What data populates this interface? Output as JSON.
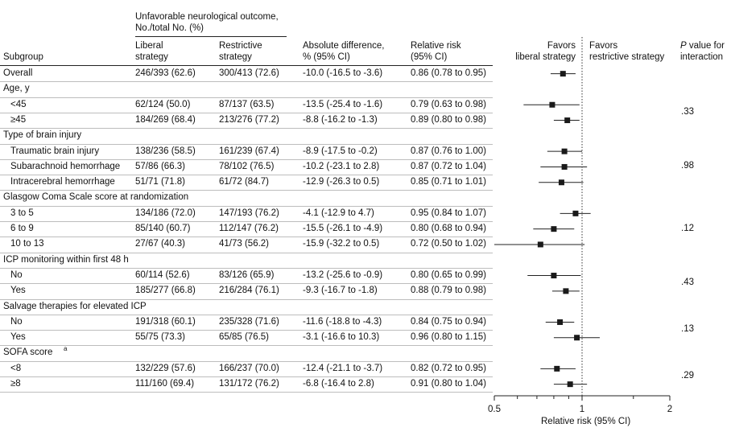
{
  "headers": {
    "outcome_line1": "Unfavorable neurological outcome,",
    "outcome_line2": "No./total No. (%)",
    "subgroup": "Subgroup",
    "liberal_1": "Liberal",
    "liberal_2": "strategy",
    "restrictive_1": "Restrictive",
    "restrictive_2": "strategy",
    "absdiff_1": "Absolute difference,",
    "absdiff_2": "% (95% CI)",
    "rr_1": "Relative risk",
    "rr_2": "(95% CI)",
    "favors_liberal_1": "Favors",
    "favors_liberal_2": "liberal strategy",
    "favors_restrictive_1": "Favors",
    "favors_restrictive_2": "restrictive strategy",
    "pval_1": "P",
    "pval_1b": " value for",
    "pval_2": "interaction"
  },
  "chart_data": {
    "type": "forest",
    "xlabel": "Relative risk (95% CI)",
    "xscale": "log",
    "xlim": [
      0.5,
      2
    ],
    "xticks": [
      "0.5",
      "1",
      "2"
    ],
    "reference_line": 1,
    "rows": [
      {
        "kind": "row",
        "label": "Overall",
        "liberal": "246/393 (62.6)",
        "restrictive": "300/413 (72.6)",
        "absdiff": "-10.0 (-16.5 to -3.6)",
        "rr_text": "0.86 (0.78 to 0.95)",
        "rr": 0.86,
        "lo": 0.78,
        "hi": 0.95
      },
      {
        "kind": "group",
        "label": "Age, y"
      },
      {
        "kind": "row",
        "label": "<45",
        "liberal": "62/124 (50.0)",
        "restrictive": "87/137 (63.5)",
        "absdiff": "-13.5 (-25.4 to -1.6)",
        "rr_text": "0.79 (0.63 to 0.98)",
        "rr": 0.79,
        "lo": 0.63,
        "hi": 0.98
      },
      {
        "kind": "row",
        "label": "≥45",
        "liberal": "184/269 (68.4)",
        "restrictive": "213/276 (77.2)",
        "absdiff": "-8.8 (-16.2 to -1.3)",
        "rr_text": "0.89 (0.80 to 0.98)",
        "rr": 0.89,
        "lo": 0.8,
        "hi": 0.98
      },
      {
        "kind": "group",
        "label": "Type of brain injury"
      },
      {
        "kind": "row",
        "label": "Traumatic brain injury",
        "liberal": "138/236 (58.5)",
        "restrictive": "161/239 (67.4)",
        "absdiff": "-8.9 (-17.5 to -0.2)",
        "rr_text": "0.87 (0.76 to 1.00)",
        "rr": 0.87,
        "lo": 0.76,
        "hi": 1.0
      },
      {
        "kind": "row",
        "label": "Subarachnoid hemorrhage",
        "liberal": "57/86 (66.3)",
        "restrictive": "78/102 (76.5)",
        "absdiff": "-10.2 (-23.1 to 2.8)",
        "rr_text": "0.87 (0.72 to 1.04)",
        "rr": 0.87,
        "lo": 0.72,
        "hi": 1.04
      },
      {
        "kind": "row",
        "label": "Intracerebral hemorrhage",
        "liberal": "51/71 (71.8)",
        "restrictive": "61/72 (84.7)",
        "absdiff": "-12.9 (-26.3 to 0.5)",
        "rr_text": "0.85 (0.71 to 1.01)",
        "rr": 0.85,
        "lo": 0.71,
        "hi": 1.01
      },
      {
        "kind": "group",
        "label": "Glasgow Coma Scale score at randomization"
      },
      {
        "kind": "row",
        "label": "3 to 5",
        "liberal": "134/186 (72.0)",
        "restrictive": "147/193 (76.2)",
        "absdiff": "-4.1 (-12.9 to 4.7)",
        "rr_text": "0.95 (0.84 to 1.07)",
        "rr": 0.95,
        "lo": 0.84,
        "hi": 1.07
      },
      {
        "kind": "row",
        "label": "6 to 9",
        "liberal": "85/140 (60.7)",
        "restrictive": "112/147 (76.2)",
        "absdiff": "-15.5 (-26.1 to -4.9)",
        "rr_text": "0.80 (0.68 to 0.94)",
        "rr": 0.8,
        "lo": 0.68,
        "hi": 0.94
      },
      {
        "kind": "row",
        "label": "10 to 13",
        "liberal": "27/67 (40.3)",
        "restrictive": "41/73 (56.2)",
        "absdiff": "-15.9 (-32.2 to 0.5)",
        "rr_text": "0.72 (0.50 to 1.02)",
        "rr": 0.72,
        "lo": 0.5,
        "hi": 1.02
      },
      {
        "kind": "group",
        "label": "ICP monitoring within first 48 h"
      },
      {
        "kind": "row",
        "label": "No",
        "liberal": "60/114 (52.6)",
        "restrictive": "83/126 (65.9)",
        "absdiff": "-13.2 (-25.6 to -0.9)",
        "rr_text": "0.80 (0.65 to 0.99)",
        "rr": 0.8,
        "lo": 0.65,
        "hi": 0.99
      },
      {
        "kind": "row",
        "label": "Yes",
        "liberal": "185/277 (66.8)",
        "restrictive": "216/284 (76.1)",
        "absdiff": "-9.3 (-16.7 to -1.8)",
        "rr_text": "0.88 (0.79 to 0.98)",
        "rr": 0.88,
        "lo": 0.79,
        "hi": 0.98
      },
      {
        "kind": "group",
        "label": "Salvage therapies for elevated ICP"
      },
      {
        "kind": "row",
        "label": "No",
        "liberal": "191/318 (60.1)",
        "restrictive": "235/328 (71.6)",
        "absdiff": "-11.6 (-18.8 to -4.3)",
        "rr_text": "0.84 (0.75 to 0.94)",
        "rr": 0.84,
        "lo": 0.75,
        "hi": 0.94
      },
      {
        "kind": "row",
        "label": "Yes",
        "liberal": "55/75 (73.3)",
        "restrictive": "65/85 (76.5)",
        "absdiff": "-3.1 (-16.6 to 10.3)",
        "rr_text": "0.96 (0.80 to 1.15)",
        "rr": 0.96,
        "lo": 0.8,
        "hi": 1.15
      },
      {
        "kind": "group",
        "label": "SOFA score",
        "sup": "a"
      },
      {
        "kind": "row",
        "label": "<8",
        "liberal": "132/229 (57.6)",
        "restrictive": "166/237 (70.0)",
        "absdiff": "-12.4 (-21.1 to -3.7)",
        "rr_text": "0.82 (0.72 to 0.95)",
        "rr": 0.82,
        "lo": 0.72,
        "hi": 0.95
      },
      {
        "kind": "row",
        "label": "≥8",
        "liberal": "111/160 (69.4)",
        "restrictive": "131/172 (76.2)",
        "absdiff": "-6.8 (-16.4 to 2.8)",
        "rr_text": "0.91 (0.80 to 1.04)",
        "rr": 0.91,
        "lo": 0.8,
        "hi": 1.04
      }
    ],
    "interactions": [
      {
        "group": "Age, y",
        "p": ".33"
      },
      {
        "group": "Type of brain injury",
        "p": ".98"
      },
      {
        "group": "Glasgow Coma Scale score at randomization",
        "p": ".12"
      },
      {
        "group": "ICP monitoring within first 48 h",
        "p": ".43"
      },
      {
        "group": "Salvage therapies for elevated ICP",
        "p": ".13"
      },
      {
        "group": "SOFA score",
        "p": ".29"
      }
    ]
  }
}
